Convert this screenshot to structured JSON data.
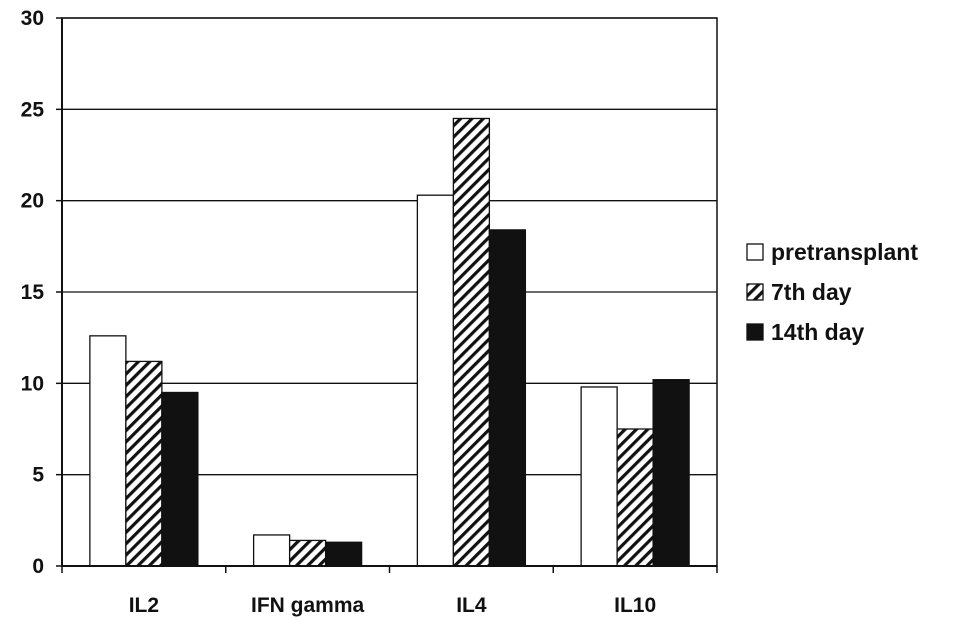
{
  "chart_data": {
    "type": "bar",
    "title": "",
    "xlabel": "",
    "ylabel": "",
    "categories": [
      "IL2",
      "IFN gamma",
      "IL4",
      "IL10"
    ],
    "ylim": [
      0,
      30
    ],
    "yticks": [
      0,
      5,
      10,
      15,
      20,
      25,
      30
    ],
    "grid": true,
    "legend_position": "right",
    "series": [
      {
        "name": "pretransplant",
        "values": [
          12.6,
          1.7,
          20.3,
          9.8
        ],
        "fill": "white"
      },
      {
        "name": "7th day",
        "values": [
          11.2,
          1.4,
          24.5,
          7.5
        ],
        "fill": "hatched"
      },
      {
        "name": "14th day",
        "values": [
          9.5,
          1.3,
          18.4,
          10.2
        ],
        "fill": "black"
      }
    ]
  }
}
